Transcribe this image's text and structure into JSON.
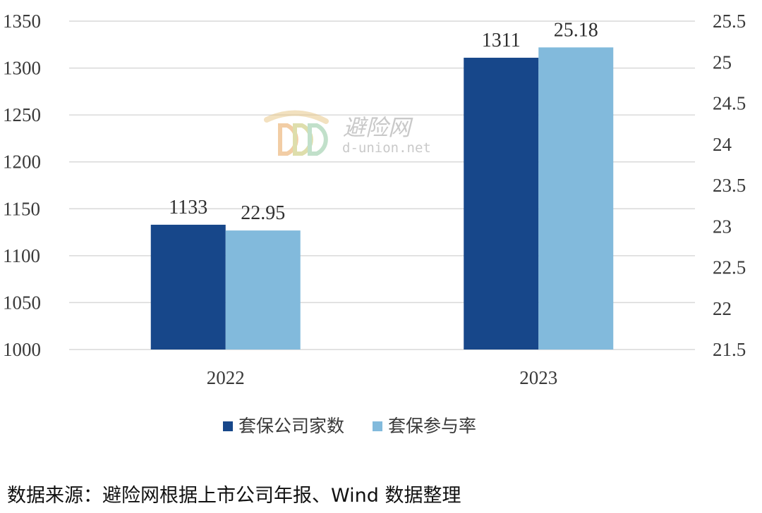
{
  "colors": {
    "series1": "#17478A",
    "series2": "#82BADC",
    "grid": "#D9D9D9",
    "text": "#3A3A3A"
  },
  "watermark": {
    "logo": "ddd-logo",
    "name_cn": "避险网",
    "domain": "d-union.net"
  },
  "source_note": "数据来源：避险网根据上市公司年报、Wind 数据整理",
  "chart_data": {
    "type": "bar",
    "categories": [
      "2022",
      "2023"
    ],
    "series": [
      {
        "name": "套保公司家数",
        "values": [
          1133,
          1311
        ],
        "labels": [
          "1133",
          "1311"
        ],
        "axis": "left"
      },
      {
        "name": "套保参与率",
        "values": [
          22.95,
          25.18
        ],
        "labels": [
          "22.95",
          "25.18"
        ],
        "axis": "right"
      }
    ],
    "y_left": {
      "ylim": [
        1000,
        1350
      ],
      "ticks": [
        "1000",
        "1050",
        "1100",
        "1150",
        "1200",
        "1250",
        "1300",
        "1350"
      ]
    },
    "y_right": {
      "ylim": [
        21.5,
        25.5
      ],
      "ticks": [
        "21.5",
        "22",
        "22.5",
        "23",
        "23.5",
        "24",
        "24.5",
        "25",
        "25.5"
      ]
    },
    "grid": true,
    "legend_position": "bottom"
  }
}
